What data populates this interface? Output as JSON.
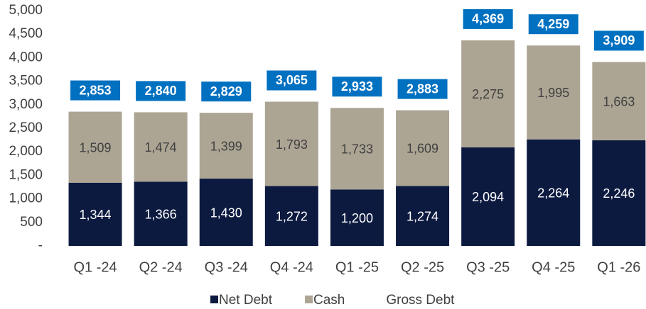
{
  "chart_data": {
    "type": "stacked_bar",
    "categories": [
      "Q1 -24",
      "Q2 -24",
      "Q3 -24",
      "Q4 -24",
      "Q1 -25",
      "Q2 -25",
      "Q3 -25",
      "Q4 -25",
      "Q1 -26"
    ],
    "series": [
      {
        "name": "Net Debt",
        "color": "#0c1a40",
        "label_color": "#ffffff",
        "values": [
          1344,
          1366,
          1430,
          1272,
          1200,
          1274,
          2094,
          2264,
          2246
        ],
        "value_labels": [
          "1,344",
          "1,366",
          "1,430",
          "1,272",
          "1,200",
          "1,274",
          "2,094",
          "2,264",
          "2,246"
        ]
      },
      {
        "name": "Cash",
        "color": "#ada594",
        "label_color": "#404040",
        "values": [
          1509,
          1474,
          1399,
          1793,
          1733,
          1609,
          2275,
          1995,
          1663
        ],
        "value_labels": [
          "1,509",
          "1,474",
          "1,399",
          "1,793",
          "1,733",
          "1,609",
          "2,275",
          "1,995",
          "1,663"
        ]
      }
    ],
    "totals": {
      "name": "Gross Debt",
      "color": "#0070c0",
      "values": [
        2853,
        2840,
        2829,
        3065,
        2933,
        2883,
        4369,
        4259,
        3909
      ],
      "value_labels": [
        "2,853",
        "2,840",
        "2,829",
        "3,065",
        "2,933",
        "2,883",
        "4,369",
        "4,259",
        "3,909"
      ]
    },
    "ylim": [
      0,
      5000
    ],
    "yticks": [
      {
        "value": 0,
        "label": "-"
      },
      500,
      {
        "value": 1000,
        "label": "1,000"
      },
      {
        "value": 1500,
        "label": "1,500"
      },
      {
        "value": 2000,
        "label": "2,000"
      },
      {
        "value": 2500,
        "label": "2,500"
      },
      {
        "value": 3000,
        "label": "3,000"
      },
      {
        "value": 3500,
        "label": "3,500"
      },
      {
        "value": 4000,
        "label": "4,000"
      },
      {
        "value": 4500,
        "label": "4,500"
      },
      {
        "value": 5000,
        "label": "5,000"
      }
    ],
    "grid": false
  }
}
